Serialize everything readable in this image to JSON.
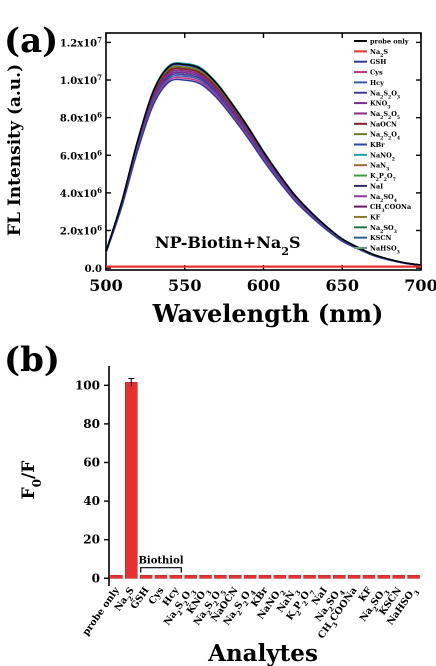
{
  "chart_data": [
    {
      "panel_label": "(a)",
      "type": "line",
      "xlabel": "Wavelength (nm)",
      "ylabel": "FL Intensity (a.u.)",
      "xlim": [
        500,
        700
      ],
      "ylim": [
        -100000,
        12500000
      ],
      "x_ticks": [
        500,
        550,
        600,
        650,
        700
      ],
      "x_tick_labels": [
        "500",
        "550",
        "600",
        "650",
        "700"
      ],
      "y_ticks": [
        0,
        2000000,
        4000000,
        6000000,
        8000000,
        10000000,
        12000000
      ],
      "y_tick_labels": [
        {
          "mantissa": "0.0",
          "exp": ""
        },
        {
          "mantissa": "2.0x10",
          "exp": "6"
        },
        {
          "mantissa": "4.0x10",
          "exp": "6"
        },
        {
          "mantissa": "6.0x10",
          "exp": "6"
        },
        {
          "mantissa": "8.0x10",
          "exp": "6"
        },
        {
          "mantissa": "1.0x10",
          "exp": "7"
        },
        {
          "mantissa": "1.2x10",
          "exp": "7"
        }
      ],
      "annotation": {
        "text": "NP-Biotin+Na",
        "sub": "2",
        "tail": "S"
      },
      "grid": false,
      "legend_position": "top-right",
      "x": [
        500,
        510,
        520,
        530,
        540,
        550,
        560,
        570,
        580,
        590,
        600,
        610,
        620,
        630,
        640,
        650,
        660,
        670,
        680,
        690,
        700
      ],
      "base_profile": [
        800000,
        3200000,
        6100000,
        8500000,
        9700000,
        9800000,
        9600000,
        8900000,
        7900000,
        6800000,
        5600000,
        4500000,
        3500000,
        2700000,
        2000000,
        1400000,
        1000000,
        650000,
        420000,
        250000,
        150000
      ],
      "series": [
        {
          "name": "probe only",
          "label": [
            {
              "t": "probe only"
            }
          ],
          "color": "#000000",
          "scale": 1.105
        },
        {
          "name": "Na2S",
          "label": [
            {
              "t": "Na"
            },
            {
              "t": "2",
              "s": "sub"
            },
            {
              "t": "S"
            }
          ],
          "color": "#e8312e",
          "flat": 80000
        },
        {
          "name": "GSH",
          "label": [
            {
              "t": "GSH"
            }
          ],
          "color": "#2b3a9e",
          "scale": 1.02
        },
        {
          "name": "Cys",
          "label": [
            {
              "t": "Cys"
            }
          ],
          "color": "#c7337f",
          "scale": 1.03
        },
        {
          "name": "Hcy",
          "label": [
            {
              "t": "Hcy"
            }
          ],
          "color": "#3a55b5",
          "scale": 1.04
        },
        {
          "name": "Na2S2O3",
          "label": [
            {
              "t": "Na"
            },
            {
              "t": "2",
              "s": "sub"
            },
            {
              "t": "S"
            },
            {
              "t": "2",
              "s": "sub"
            },
            {
              "t": "O"
            },
            {
              "t": "3",
              "s": "sub"
            }
          ],
          "color": "#3a3aa0",
          "scale": 1.05
        },
        {
          "name": "KNO3",
          "label": [
            {
              "t": "KNO"
            },
            {
              "t": "3",
              "s": "sub"
            }
          ],
          "color": "#7a2a9a",
          "scale": 1.06
        },
        {
          "name": "Na2S2O5",
          "label": [
            {
              "t": "Na"
            },
            {
              "t": "2",
              "s": "sub"
            },
            {
              "t": "S"
            },
            {
              "t": "2",
              "s": "sub"
            },
            {
              "t": "O"
            },
            {
              "t": "5",
              "s": "sub"
            }
          ],
          "color": "#8a2a8a",
          "scale": 1.07
        },
        {
          "name": "NaOCN",
          "label": [
            {
              "t": "NaOCN"
            }
          ],
          "color": "#8b1a1a",
          "scale": 1.08
        },
        {
          "name": "Na2S2O4",
          "label": [
            {
              "t": "Na"
            },
            {
              "t": "2",
              "s": "sub"
            },
            {
              "t": "S"
            },
            {
              "t": "2",
              "s": "sub"
            },
            {
              "t": "O"
            },
            {
              "t": "4",
              "s": "sub"
            }
          ],
          "color": "#6b7a1a",
          "scale": 1.09
        },
        {
          "name": "KBr",
          "label": [
            {
              "t": "KBr"
            }
          ],
          "color": "#2a4ab0",
          "scale": 1.1
        },
        {
          "name": "NaNO2",
          "label": [
            {
              "t": "NaNO"
            },
            {
              "t": "2",
              "s": "sub"
            }
          ],
          "color": "#1aa0b0",
          "scale": 1.11
        },
        {
          "name": "NaN3",
          "label": [
            {
              "t": "NaN"
            },
            {
              "t": "3",
              "s": "sub"
            }
          ],
          "color": "#a06a2a",
          "scale": 1.1
        },
        {
          "name": "K2P2O7",
          "label": [
            {
              "t": "K"
            },
            {
              "t": "2",
              "s": "sub"
            },
            {
              "t": "P"
            },
            {
              "t": "2",
              "s": "sub"
            },
            {
              "t": "O"
            },
            {
              "t": "7",
              "s": "sub"
            }
          ],
          "color": "#3aa03a",
          "scale": 1.09
        },
        {
          "name": "NaI",
          "label": [
            {
              "t": "NaI"
            }
          ],
          "color": "#2a2a6a",
          "scale": 1.08
        },
        {
          "name": "Na2SO4",
          "label": [
            {
              "t": "Na"
            },
            {
              "t": "2",
              "s": "sub"
            },
            {
              "t": "SO"
            },
            {
              "t": "4",
              "s": "sub"
            }
          ],
          "color": "#8a3aa0",
          "scale": 1.07
        },
        {
          "name": "CH3COONa",
          "label": [
            {
              "t": "CH"
            },
            {
              "t": "3",
              "s": "sub"
            },
            {
              "t": "COONa"
            }
          ],
          "color": "#6a1a6a",
          "scale": 1.06
        },
        {
          "name": "KF",
          "label": [
            {
              "t": "KF"
            }
          ],
          "color": "#8a7a2a",
          "scale": 1.05
        },
        {
          "name": "Na2SO3",
          "label": [
            {
              "t": "Na"
            },
            {
              "t": "2",
              "s": "sub"
            },
            {
              "t": "SO"
            },
            {
              "t": "3",
              "s": "sub"
            }
          ],
          "color": "#1a7a4a",
          "scale": 1.06
        },
        {
          "name": "KSCN",
          "label": [
            {
              "t": "KSCN"
            }
          ],
          "color": "#2a5aa0",
          "scale": 1.07
        },
        {
          "name": "NaHSO3",
          "label": [
            {
              "t": "NaHSO"
            },
            {
              "t": "3",
              "s": "sub"
            }
          ],
          "color": "#5aa07a",
          "scale": 1.08
        }
      ]
    },
    {
      "panel_label": "(b)",
      "type": "bar",
      "xlabel": "Analytes",
      "ylabel": {
        "main": "F",
        "sub": "0",
        "tail": "/F"
      },
      "ylim": [
        -4,
        110
      ],
      "y_ticks": [
        0,
        20,
        40,
        60,
        80,
        100
      ],
      "bar_color": "#e8312e",
      "bracket_label": "Biothiol",
      "bracket_categories": [
        "GSH",
        "Cys",
        "Hcy"
      ],
      "categories": [
        {
          "label": [
            {
              "t": "probe only"
            }
          ],
          "value": 1.5
        },
        {
          "label": [
            {
              "t": "Na"
            },
            {
              "t": "2",
              "s": "sub"
            },
            {
              "t": "S"
            }
          ],
          "value": 101.5,
          "error": 2
        },
        {
          "label": [
            {
              "t": "GSH"
            }
          ],
          "value": 1.5
        },
        {
          "label": [
            {
              "t": "Cys"
            }
          ],
          "value": 1.5
        },
        {
          "label": [
            {
              "t": "Hcy"
            }
          ],
          "value": 1.5
        },
        {
          "label": [
            {
              "t": "Na"
            },
            {
              "t": "2",
              "s": "sub"
            },
            {
              "t": "S"
            },
            {
              "t": "2",
              "s": "sub"
            },
            {
              "t": "O"
            },
            {
              "t": "3",
              "s": "sub"
            }
          ],
          "value": 1.5
        },
        {
          "label": [
            {
              "t": "KNO"
            },
            {
              "t": "3",
              "s": "sub"
            }
          ],
          "value": 1.5
        },
        {
          "label": [
            {
              "t": "Na"
            },
            {
              "t": "2",
              "s": "sub"
            },
            {
              "t": "S"
            },
            {
              "t": "2",
              "s": "sub"
            },
            {
              "t": "O"
            },
            {
              "t": "5",
              "s": "sub"
            }
          ],
          "value": 1.5
        },
        {
          "label": [
            {
              "t": "NaOCN"
            }
          ],
          "value": 1.5
        },
        {
          "label": [
            {
              "t": "Na"
            },
            {
              "t": "2",
              "s": "sub"
            },
            {
              "t": "S"
            },
            {
              "t": "2",
              "s": "sub"
            },
            {
              "t": "O"
            },
            {
              "t": "4",
              "s": "sub"
            }
          ],
          "value": 1.5
        },
        {
          "label": [
            {
              "t": "KBr"
            }
          ],
          "value": 1.5
        },
        {
          "label": [
            {
              "t": "NaNO"
            },
            {
              "t": "2",
              "s": "sub"
            }
          ],
          "value": 1.5
        },
        {
          "label": [
            {
              "t": "NaN"
            },
            {
              "t": "3",
              "s": "sub"
            }
          ],
          "value": 1.5
        },
        {
          "label": [
            {
              "t": "K"
            },
            {
              "t": "2",
              "s": "sub"
            },
            {
              "t": "P"
            },
            {
              "t": "2",
              "s": "sub"
            },
            {
              "t": "O"
            },
            {
              "t": "7",
              "s": "sub"
            }
          ],
          "value": 1.5
        },
        {
          "label": [
            {
              "t": "NaI"
            }
          ],
          "value": 1.5
        },
        {
          "label": [
            {
              "t": "Na"
            },
            {
              "t": "2",
              "s": "sub"
            },
            {
              "t": "SO"
            },
            {
              "t": "4",
              "s": "sub"
            }
          ],
          "value": 1.5
        },
        {
          "label": [
            {
              "t": "CH"
            },
            {
              "t": "3",
              "s": "sub"
            },
            {
              "t": "COONa"
            }
          ],
          "value": 1.5
        },
        {
          "label": [
            {
              "t": "KF"
            }
          ],
          "value": 1.5
        },
        {
          "label": [
            {
              "t": "Na"
            },
            {
              "t": "2",
              "s": "sub"
            },
            {
              "t": "SO"
            },
            {
              "t": "3",
              "s": "sub"
            }
          ],
          "value": 1.5
        },
        {
          "label": [
            {
              "t": "KSCN"
            }
          ],
          "value": 1.5
        },
        {
          "label": [
            {
              "t": "NaHSO"
            },
            {
              "t": "3",
              "s": "sub"
            }
          ],
          "value": 1.5
        }
      ]
    }
  ]
}
